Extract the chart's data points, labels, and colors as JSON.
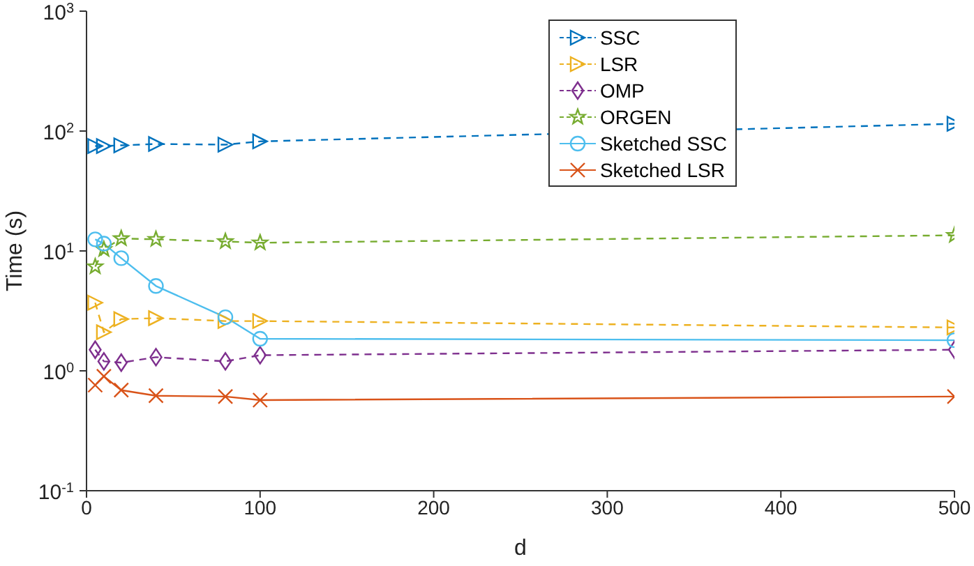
{
  "chart_data": {
    "type": "line",
    "xlabel": "d",
    "ylabel": "Time (s)",
    "x": [
      5,
      10,
      20,
      40,
      80,
      100,
      500
    ],
    "xlim": [
      0,
      500
    ],
    "xticks": [
      0,
      100,
      200,
      300,
      400,
      500
    ],
    "ylim": [
      0.1,
      1000
    ],
    "yticks": [
      {
        "value": 0.1,
        "label": "10$^{-1}$"
      },
      {
        "value": 1,
        "label": "10$^{0}$"
      },
      {
        "value": 10,
        "label": "10$^{1}$"
      },
      {
        "value": 100,
        "label": "10$^{2}$"
      },
      {
        "value": 1000,
        "label": "10$^{3}$"
      }
    ],
    "log": "y",
    "grid": false,
    "legend": "top right",
    "series": [
      {
        "name": "SSC",
        "color": "#0072bd",
        "marker": "triangle",
        "line_style": "dashed",
        "values": [
          75,
          75,
          76,
          78,
          77,
          82,
          115
        ]
      },
      {
        "name": "LSR",
        "color": "#edb120",
        "marker": "triangle",
        "line_style": "dashed",
        "values": [
          3.7,
          2.1,
          2.7,
          2.75,
          2.6,
          2.6,
          2.3
        ]
      },
      {
        "name": "OMP",
        "color": "#7e2f8e",
        "marker": "diamond",
        "line_style": "dashed",
        "values": [
          1.5,
          1.2,
          1.17,
          1.3,
          1.2,
          1.35,
          1.5
        ]
      },
      {
        "name": "ORGEN",
        "color": "#77ac30",
        "marker": "star",
        "line_style": "dashed",
        "values": [
          7.4,
          10.3,
          12.7,
          12.5,
          12,
          11.7,
          13.5
        ]
      },
      {
        "name": "Sketched SSC",
        "color": "#4dbeee",
        "marker": "circle",
        "line_style": "solid",
        "values": [
          12.5,
          11.5,
          8.7,
          5.1,
          2.8,
          1.85,
          1.8
        ]
      },
      {
        "name": "Sketched LSR",
        "color": "#d95319",
        "marker": "cross",
        "line_style": "solid",
        "values": [
          0.76,
          0.9,
          0.69,
          0.62,
          0.61,
          0.57,
          0.61
        ]
      }
    ]
  }
}
